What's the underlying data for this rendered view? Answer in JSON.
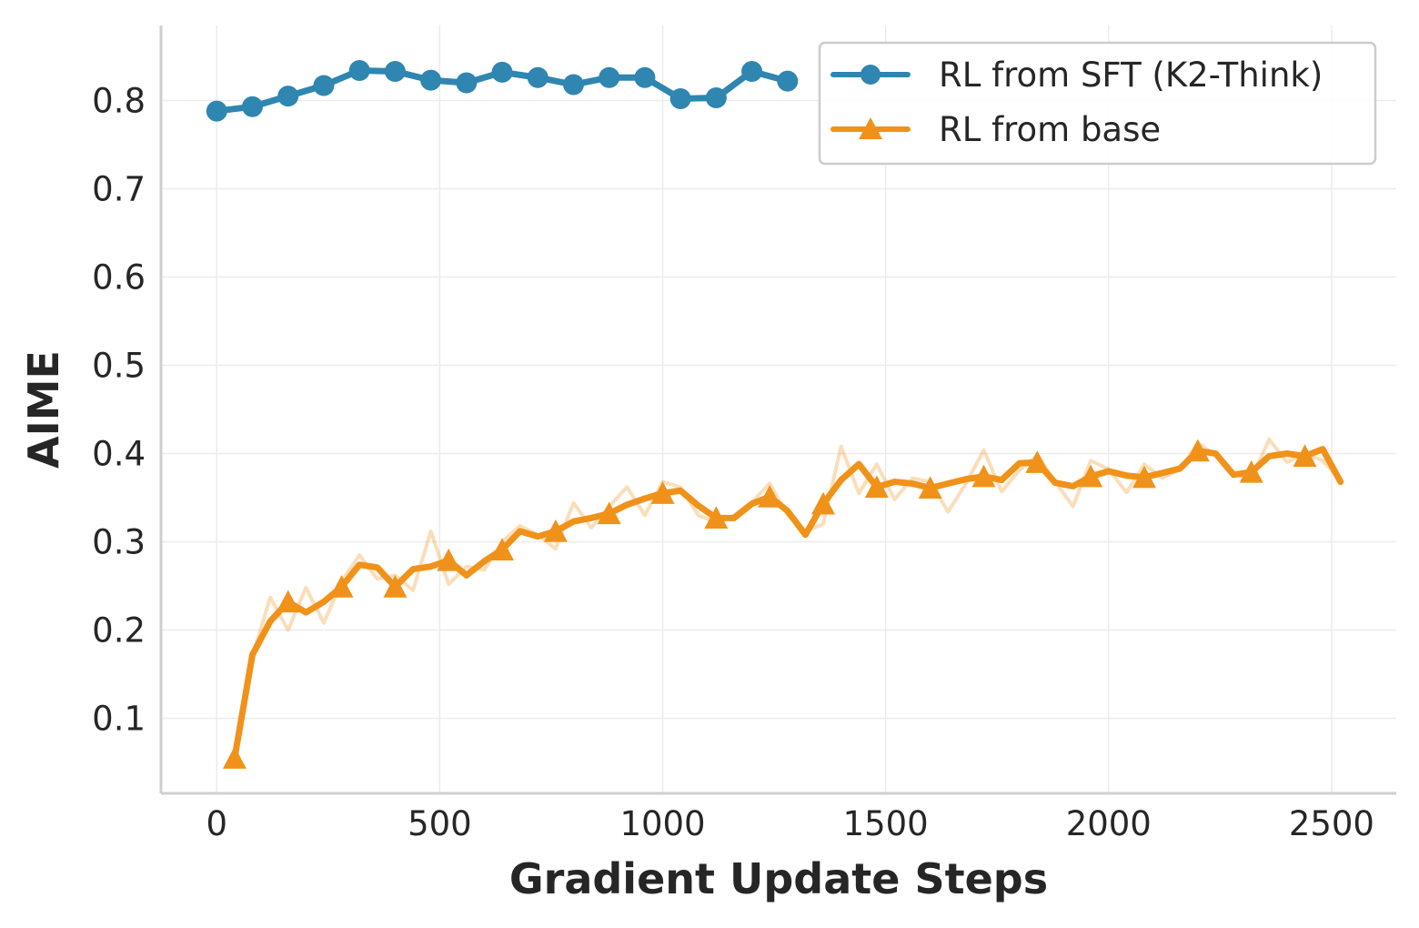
{
  "chart_data": {
    "type": "line",
    "title": "",
    "xlabel": "Gradient Update Steps",
    "ylabel": "AIME",
    "xlim": [
      -125,
      2645
    ],
    "ylim": [
      0.015,
      0.885
    ],
    "xticks": [
      0,
      500,
      1000,
      1500,
      2000,
      2500
    ],
    "xtick_labels": [
      "0",
      "500",
      "1000",
      "1500",
      "2000",
      "2500"
    ],
    "yticks": [
      0.1,
      0.2,
      0.3,
      0.4,
      0.5,
      0.6,
      0.7,
      0.8
    ],
    "ytick_labels": [
      "0.1",
      "0.2",
      "0.3",
      "0.4",
      "0.5",
      "0.6",
      "0.7",
      "0.8"
    ],
    "grid": true,
    "legend_position": "top-right",
    "series": [
      {
        "name": "RL from SFT (K2-Think)",
        "color": "#2f86b0",
        "marker": "circle",
        "x": [
          0,
          80,
          160,
          240,
          320,
          400,
          480,
          560,
          640,
          720,
          800,
          880,
          960,
          1040,
          1120,
          1200,
          1280
        ],
        "y": [
          0.788,
          0.793,
          0.805,
          0.817,
          0.834,
          0.833,
          0.823,
          0.82,
          0.832,
          0.826,
          0.818,
          0.826,
          0.826,
          0.802,
          0.803,
          0.833,
          0.822
        ],
        "marker_x": [
          0,
          80,
          160,
          240,
          320,
          400,
          480,
          560,
          640,
          720,
          800,
          880,
          960,
          1040,
          1120,
          1200,
          1280
        ],
        "marker_y": [
          0.788,
          0.793,
          0.805,
          0.817,
          0.834,
          0.833,
          0.823,
          0.82,
          0.832,
          0.826,
          0.818,
          0.826,
          0.826,
          0.802,
          0.803,
          0.833,
          0.822
        ]
      },
      {
        "name": "RL from base",
        "color": "#f0921a",
        "marker": "triangle",
        "x": [
          40,
          80,
          120,
          160,
          200,
          240,
          280,
          320,
          360,
          400,
          440,
          480,
          520,
          560,
          600,
          640,
          680,
          720,
          760,
          800,
          840,
          880,
          920,
          960,
          1000,
          1040,
          1080,
          1120,
          1160,
          1200,
          1240,
          1280,
          1320,
          1360,
          1400,
          1440,
          1480,
          1520,
          1560,
          1600,
          1640,
          1680,
          1720,
          1760,
          1800,
          1840,
          1880,
          1920,
          1960,
          2000,
          2040,
          2080,
          2120,
          2160,
          2200,
          2240,
          2280,
          2320,
          2360,
          2400,
          2440,
          2480,
          2520
        ],
        "y": [
          0.055,
          0.172,
          0.21,
          0.232,
          0.22,
          0.232,
          0.249,
          0.274,
          0.271,
          0.249,
          0.269,
          0.272,
          0.279,
          0.262,
          0.278,
          0.291,
          0.312,
          0.306,
          0.312,
          0.323,
          0.327,
          0.332,
          0.342,
          0.349,
          0.355,
          0.358,
          0.341,
          0.327,
          0.327,
          0.343,
          0.351,
          0.335,
          0.308,
          0.343,
          0.37,
          0.388,
          0.362,
          0.368,
          0.366,
          0.361,
          0.366,
          0.371,
          0.374,
          0.37,
          0.389,
          0.39,
          0.367,
          0.363,
          0.374,
          0.38,
          0.375,
          0.373,
          0.378,
          0.383,
          0.403,
          0.4,
          0.376,
          0.379,
          0.397,
          0.4,
          0.397,
          0.405,
          0.368
        ],
        "raw_x": [
          40,
          80,
          120,
          160,
          200,
          240,
          280,
          320,
          360,
          400,
          440,
          480,
          520,
          560,
          600,
          640,
          680,
          720,
          760,
          800,
          840,
          880,
          920,
          960,
          1000,
          1040,
          1080,
          1120,
          1160,
          1200,
          1240,
          1280,
          1320,
          1360,
          1400,
          1440,
          1480,
          1520,
          1560,
          1600,
          1640,
          1680,
          1720,
          1760,
          1800,
          1840,
          1880,
          1920,
          1960,
          2000,
          2040,
          2080,
          2120,
          2160,
          2200,
          2240,
          2280,
          2320,
          2360,
          2400,
          2440,
          2480,
          2520
        ],
        "raw_y": [
          0.055,
          0.17,
          0.237,
          0.2,
          0.248,
          0.208,
          0.255,
          0.285,
          0.258,
          0.262,
          0.245,
          0.312,
          0.252,
          0.272,
          0.268,
          0.3,
          0.318,
          0.308,
          0.292,
          0.344,
          0.316,
          0.34,
          0.362,
          0.33,
          0.368,
          0.362,
          0.33,
          0.322,
          0.33,
          0.345,
          0.366,
          0.33,
          0.312,
          0.32,
          0.408,
          0.355,
          0.388,
          0.348,
          0.372,
          0.368,
          0.334,
          0.366,
          0.404,
          0.357,
          0.381,
          0.398,
          0.368,
          0.34,
          0.392,
          0.382,
          0.356,
          0.388,
          0.372,
          0.382,
          0.412,
          0.398,
          0.376,
          0.372,
          0.416,
          0.39,
          0.4,
          0.392,
          0.37
        ],
        "marker_x": [
          40,
          160,
          280,
          400,
          520,
          640,
          760,
          880,
          1000,
          1120,
          1240,
          1360,
          1480,
          1600,
          1720,
          1840,
          1960,
          2080,
          2200,
          2320,
          2440
        ],
        "marker_y": [
          0.055,
          0.232,
          0.249,
          0.249,
          0.279,
          0.291,
          0.312,
          0.332,
          0.355,
          0.327,
          0.351,
          0.343,
          0.362,
          0.361,
          0.374,
          0.39,
          0.374,
          0.373,
          0.403,
          0.379,
          0.397
        ]
      }
    ]
  }
}
